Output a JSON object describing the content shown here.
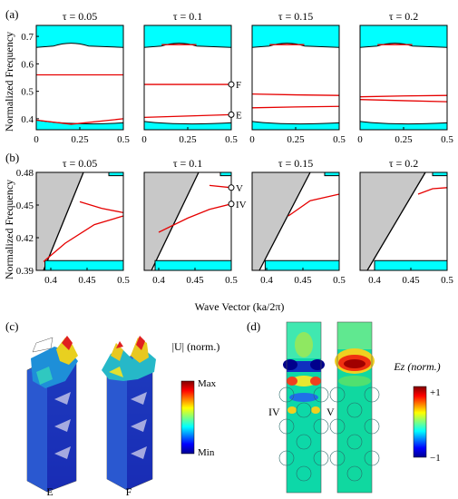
{
  "panel_labels": {
    "a": "(a)",
    "b": "(b)",
    "c": "(c)",
    "d": "(d)"
  },
  "colors": {
    "band_fill": "#00ffff",
    "gray_fill": "#c8c8c8",
    "red_line": "#e60000",
    "black_line": "#000000"
  },
  "row_a": {
    "ylabel": "Normalized Frequency",
    "titles": [
      "τ = 0.05",
      "τ = 0.1",
      "τ = 0.15",
      "τ = 0.2"
    ],
    "yticks": [
      "0.4",
      "0.5",
      "0.6",
      "0.7"
    ],
    "xticks": [
      "0",
      "0.25",
      "0.5"
    ],
    "point_labels": {
      "F": "F",
      "E": "E"
    }
  },
  "row_b": {
    "ylabel": "Normalized Frequency",
    "titles": [
      "τ = 0.05",
      "τ = 0.1",
      "τ = 0.15",
      "τ = 0.2"
    ],
    "yticks": [
      "0.39",
      "0.42",
      "0.45",
      "0.48"
    ],
    "xticks": [
      "0.4",
      "0.45",
      "0.5"
    ],
    "xlabel": "Wave Vector (ka/2π)",
    "point_labels": {
      "V": "V",
      "IV": "IV"
    }
  },
  "panel_c": {
    "colorbar_title": "|U| (norm.)",
    "colorbar_max": "Max",
    "colorbar_min": "Min",
    "labels": [
      "E",
      "F"
    ]
  },
  "panel_d": {
    "colorbar_title": "Ez (norm.)",
    "colorbar_max": "+1",
    "colorbar_min": "−1",
    "labels": [
      "IV",
      "V"
    ]
  },
  "chart_data": [
    {
      "type": "line",
      "panel": "a",
      "xlabel": "",
      "ylabel": "Normalized Frequency",
      "xlim": [
        0,
        0.5
      ],
      "ylim": [
        0.36,
        0.74
      ],
      "subplots": [
        {
          "title": "τ = 0.05",
          "series": [
            {
              "x": [
                0,
                0.25,
                0.5
              ],
              "y": [
                0.56,
                0.56,
                0.56
              ]
            },
            {
              "x": [
                0,
                0.2,
                0.5
              ],
              "y": [
                0.395,
                0.38,
                0.4
              ]
            }
          ]
        },
        {
          "title": "τ = 0.1",
          "series": [
            {
              "x": [
                0,
                0.25,
                0.5
              ],
              "y": [
                0.525,
                0.525,
                0.525
              ]
            },
            {
              "x": [
                0,
                0.25,
                0.5
              ],
              "y": [
                0.405,
                0.41,
                0.415
              ]
            },
            {
              "x": [
                0.1,
                0.3
              ],
              "y": [
                0.67,
                0.67
              ]
            }
          ]
        },
        {
          "title": "τ = 0.15",
          "series": [
            {
              "x": [
                0,
                0.25,
                0.5
              ],
              "y": [
                0.49,
                0.487,
                0.485
              ]
            },
            {
              "x": [
                0,
                0.25,
                0.5
              ],
              "y": [
                0.44,
                0.443,
                0.445
              ]
            },
            {
              "x": [
                0.1,
                0.3
              ],
              "y": [
                0.67,
                0.67
              ]
            }
          ]
        },
        {
          "title": "τ = 0.2",
          "series": [
            {
              "x": [
                0,
                0.25,
                0.5
              ],
              "y": [
                0.48,
                0.483,
                0.485
              ]
            },
            {
              "x": [
                0,
                0.25,
                0.5
              ],
              "y": [
                0.47,
                0.466,
                0.462
              ]
            },
            {
              "x": [
                0.1,
                0.3
              ],
              "y": [
                0.67,
                0.67
              ]
            }
          ]
        }
      ]
    },
    {
      "type": "line",
      "panel": "b",
      "xlabel": "Wave Vector (ka/2π)",
      "ylabel": "Normalized Frequency",
      "xlim": [
        0.38,
        0.5
      ],
      "ylim": [
        0.39,
        0.48
      ],
      "subplots": [
        {
          "title": "τ = 0.05",
          "series": [
            {
              "x": [
                0.44,
                0.47,
                0.5
              ],
              "y": [
                0.453,
                0.447,
                0.443
              ]
            },
            {
              "x": [
                0.39,
                0.42,
                0.46,
                0.5
              ],
              "y": [
                0.398,
                0.415,
                0.432,
                0.44
              ]
            }
          ]
        },
        {
          "title": "τ = 0.1",
          "series": [
            {
              "x": [
                0.47,
                0.5
              ],
              "y": [
                0.468,
                0.466
              ]
            },
            {
              "x": [
                0.4,
                0.44,
                0.47,
                0.5
              ],
              "y": [
                0.425,
                0.438,
                0.446,
                0.451
              ]
            }
          ]
        },
        {
          "title": "τ = 0.15",
          "series": [
            {
              "x": [
                0.43,
                0.46,
                0.5
              ],
              "y": [
                0.44,
                0.454,
                0.46
              ]
            }
          ]
        },
        {
          "title": "τ = 0.2",
          "series": [
            {
              "x": [
                0.46,
                0.48,
                0.5
              ],
              "y": [
                0.46,
                0.465,
                0.466
              ]
            }
          ]
        }
      ]
    }
  ]
}
